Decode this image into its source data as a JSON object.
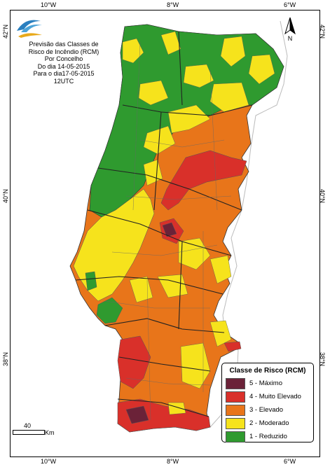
{
  "title_lines": [
    "Previsão das Classes de",
    "Risco de Incêndio (RCM)",
    "Por Concelho",
    "Do dia 14-05-2015",
    "Para o dia17-05-2015",
    "12UTC"
  ],
  "axis_ticks": {
    "top": [
      "10°W",
      "8°W",
      "6°W"
    ],
    "bottom": [
      "10°W",
      "8°W",
      "6°W"
    ],
    "left": [
      "42°N",
      "40°N",
      "38°N"
    ],
    "right": [
      "42°N",
      "40°N",
      "38°N"
    ]
  },
  "legend": {
    "title": "Classe de Risco (RCM)",
    "items": [
      {
        "label": "5 - Máximo",
        "color": "#6b2238"
      },
      {
        "label": "4 - Muito Elevado",
        "color": "#d9302a"
      },
      {
        "label": "3 - Elevado",
        "color": "#e8751a"
      },
      {
        "label": "2 - Moderado",
        "color": "#f6e31c"
      },
      {
        "label": "1 - Reduzido",
        "color": "#2f9a2f"
      }
    ]
  },
  "scale": {
    "value": "40",
    "unit": "Km"
  },
  "north_label": "N",
  "logo_icon": "ipma-logo-icon",
  "colors": {
    "maximo": "#6b2238",
    "muito_elevado": "#d9302a",
    "elevado": "#e8751a",
    "moderado": "#f6e31c",
    "reduzido": "#2f9a2f",
    "spain_outline": "#bbbbbb"
  }
}
